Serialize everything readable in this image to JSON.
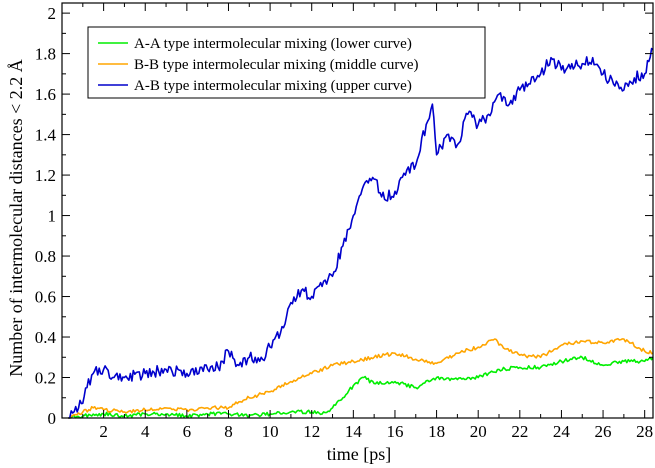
{
  "chart_data": {
    "type": "line",
    "xlabel": "time [ps]",
    "ylabel": "Number of intermolecular distances < 2.2 Å",
    "xlim": [
      0,
      28.4
    ],
    "ylim": [
      0,
      2.05
    ],
    "x_ticks": [
      2,
      4,
      6,
      8,
      10,
      12,
      14,
      16,
      18,
      20,
      22,
      24,
      26,
      28
    ],
    "y_ticks": [
      0,
      0.2,
      0.4,
      0.6,
      0.8,
      1,
      1.2,
      1.4,
      1.6,
      1.8,
      2
    ],
    "x_tick_labels": [
      "2",
      "4",
      "6",
      "8",
      "10",
      "12",
      "14",
      "16",
      "18",
      "20",
      "22",
      "24",
      "26",
      "28"
    ],
    "y_tick_labels": [
      "0",
      "0.2",
      "0.4",
      "0.6",
      "0.8",
      "1",
      "1.2",
      "1.4",
      "1.6",
      "1.8",
      "2"
    ],
    "grid": false,
    "legend": "top-left",
    "series": [
      {
        "name": "A-A type intermolecular mixing (lower curve)",
        "color": "#00ee00",
        "x": [
          0.3,
          1,
          2,
          3,
          4,
          5,
          6,
          7,
          8,
          9,
          10,
          11,
          12,
          12.5,
          13,
          13.5,
          14,
          14.5,
          15,
          16,
          17,
          18,
          19,
          20,
          21,
          22,
          23,
          24,
          25,
          26,
          27,
          28,
          28.4
        ],
        "y": [
          0,
          0.01,
          0.02,
          0.01,
          0.02,
          0.02,
          0.01,
          0.02,
          0.02,
          0.01,
          0.02,
          0.03,
          0.03,
          0.02,
          0.05,
          0.1,
          0.16,
          0.2,
          0.17,
          0.18,
          0.15,
          0.2,
          0.19,
          0.2,
          0.24,
          0.25,
          0.25,
          0.28,
          0.3,
          0.26,
          0.28,
          0.28,
          0.3
        ]
      },
      {
        "name": "B-B type intermolecular mixing (middle curve)",
        "color": "#ffa500",
        "x": [
          0.3,
          1,
          1.5,
          2,
          3,
          4,
          5,
          6,
          7,
          8,
          8.5,
          9,
          10,
          11,
          12,
          13,
          14,
          15,
          16,
          17,
          18,
          19,
          20,
          20.8,
          21,
          22,
          23,
          24,
          25,
          26,
          27,
          28,
          28.4
        ],
        "y": [
          0,
          0.03,
          0.05,
          0.04,
          0.03,
          0.04,
          0.05,
          0.04,
          0.05,
          0.05,
          0.08,
          0.1,
          0.13,
          0.18,
          0.22,
          0.26,
          0.28,
          0.3,
          0.32,
          0.29,
          0.27,
          0.32,
          0.35,
          0.39,
          0.36,
          0.31,
          0.3,
          0.36,
          0.38,
          0.37,
          0.39,
          0.33,
          0.32
        ]
      },
      {
        "name": "A-B type intermolecular mixing (upper curve)",
        "color": "#0000cc",
        "x": [
          0.3,
          0.8,
          1.2,
          1.5,
          2,
          2.5,
          3,
          4,
          5,
          6,
          7,
          7.5,
          8,
          8.5,
          9,
          9.5,
          10,
          10.5,
          11,
          11.5,
          12,
          12.5,
          13,
          13.5,
          14,
          14.5,
          15,
          15.5,
          16,
          16.5,
          17,
          17.5,
          17.8,
          18,
          18.5,
          19,
          19.5,
          20,
          20.5,
          21,
          21.5,
          22,
          22.5,
          23,
          23.5,
          24,
          24.5,
          25,
          25.5,
          26,
          26.5,
          27,
          27.5,
          28,
          28.4
        ],
        "y": [
          0,
          0.05,
          0.15,
          0.22,
          0.24,
          0.2,
          0.2,
          0.22,
          0.24,
          0.22,
          0.24,
          0.25,
          0.33,
          0.26,
          0.3,
          0.28,
          0.35,
          0.42,
          0.57,
          0.63,
          0.6,
          0.65,
          0.7,
          0.85,
          1,
          1.15,
          1.18,
          1.08,
          1.12,
          1.2,
          1.25,
          1.45,
          1.55,
          1.3,
          1.4,
          1.35,
          1.5,
          1.45,
          1.5,
          1.6,
          1.55,
          1.62,
          1.65,
          1.7,
          1.78,
          1.72,
          1.75,
          1.75,
          1.78,
          1.7,
          1.65,
          1.62,
          1.68,
          1.7,
          1.82
        ]
      }
    ]
  }
}
